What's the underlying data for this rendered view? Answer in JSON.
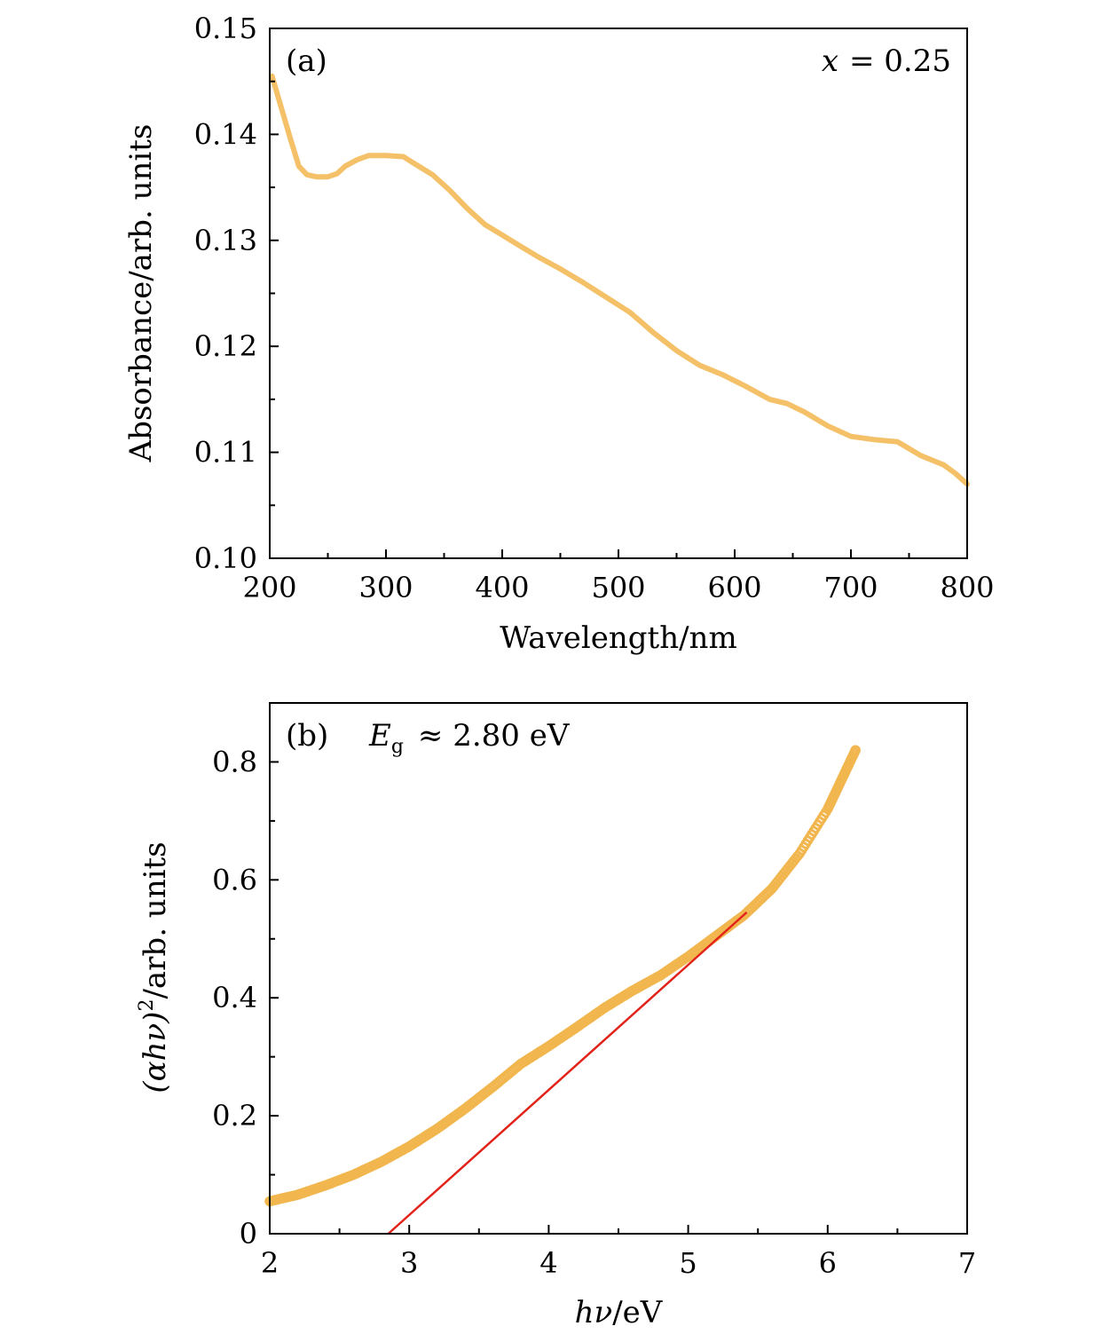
{
  "chart_data": [
    {
      "type": "line",
      "panel": "(a)",
      "annotation": "x = 0.25",
      "annotation_var": "x",
      "annotation_value": "= 0.25",
      "xlabel": "Wavelength/nm",
      "ylabel": "Absorbance/arb. units",
      "xlim": [
        200,
        800
      ],
      "ylim": [
        0.1,
        0.15
      ],
      "xticks": [
        "200",
        "300",
        "400",
        "500",
        "600",
        "700",
        "800"
      ],
      "yticks": [
        "0.10",
        "0.11",
        "0.12",
        "0.13",
        "0.14",
        "0.15"
      ],
      "grid": false,
      "series": [
        {
          "name": "Absorbance",
          "color": "#f2b64f",
          "x": [
            202,
            210,
            218,
            225,
            232,
            240,
            250,
            258,
            265,
            275,
            285,
            300,
            315,
            325,
            340,
            355,
            370,
            385,
            400,
            415,
            430,
            450,
            470,
            490,
            510,
            530,
            550,
            570,
            590,
            610,
            630,
            645,
            660,
            680,
            700,
            720,
            740,
            760,
            780,
            790,
            800
          ],
          "y": [
            0.1455,
            0.1425,
            0.1395,
            0.137,
            0.1362,
            0.136,
            0.136,
            0.1363,
            0.137,
            0.1376,
            0.138,
            0.138,
            0.1379,
            0.1372,
            0.1362,
            0.1347,
            0.133,
            0.1315,
            0.1305,
            0.1295,
            0.1285,
            0.1273,
            0.126,
            0.1246,
            0.1232,
            0.1213,
            0.1196,
            0.1182,
            0.1173,
            0.1162,
            0.115,
            0.1146,
            0.1138,
            0.1125,
            0.1115,
            0.1112,
            0.111,
            0.1097,
            0.1088,
            0.108,
            0.107
          ]
        }
      ]
    },
    {
      "type": "scatter",
      "panel": "(b)",
      "annotation_sym": "E",
      "annotation_sub": "g",
      "annotation_value": "≈ 2.80 eV",
      "xlabel_var": "hν",
      "xlabel_unit": "/eV",
      "ylabel_var": "(αhν)",
      "ylabel_sup": "2",
      "ylabel_unit": "/arb. units",
      "xlim": [
        2,
        7
      ],
      "ylim": [
        0,
        0.9
      ],
      "xticks": [
        "2",
        "3",
        "4",
        "5",
        "6",
        "7"
      ],
      "yticks": [
        "0",
        "0.2",
        "0.4",
        "0.6",
        "0.8"
      ],
      "grid": false,
      "series": [
        {
          "name": "(αhν)^2",
          "color": "#f2b64f",
          "x": [
            2.0,
            2.2,
            2.4,
            2.6,
            2.8,
            3.0,
            3.2,
            3.4,
            3.6,
            3.8,
            4.0,
            4.2,
            4.4,
            4.6,
            4.8,
            5.0,
            5.2,
            5.4,
            5.6,
            5.8,
            6.0,
            6.1,
            6.2
          ],
          "y": [
            0.055,
            0.066,
            0.082,
            0.1,
            0.122,
            0.148,
            0.178,
            0.212,
            0.249,
            0.288,
            0.318,
            0.35,
            0.383,
            0.412,
            0.438,
            0.47,
            0.505,
            0.54,
            0.585,
            0.645,
            0.72,
            0.77,
            0.82
          ]
        },
        {
          "name": "linear fit",
          "color": "#e2231a",
          "x": [
            2.85,
            5.42
          ],
          "y": [
            0.0,
            0.545
          ]
        }
      ]
    }
  ]
}
